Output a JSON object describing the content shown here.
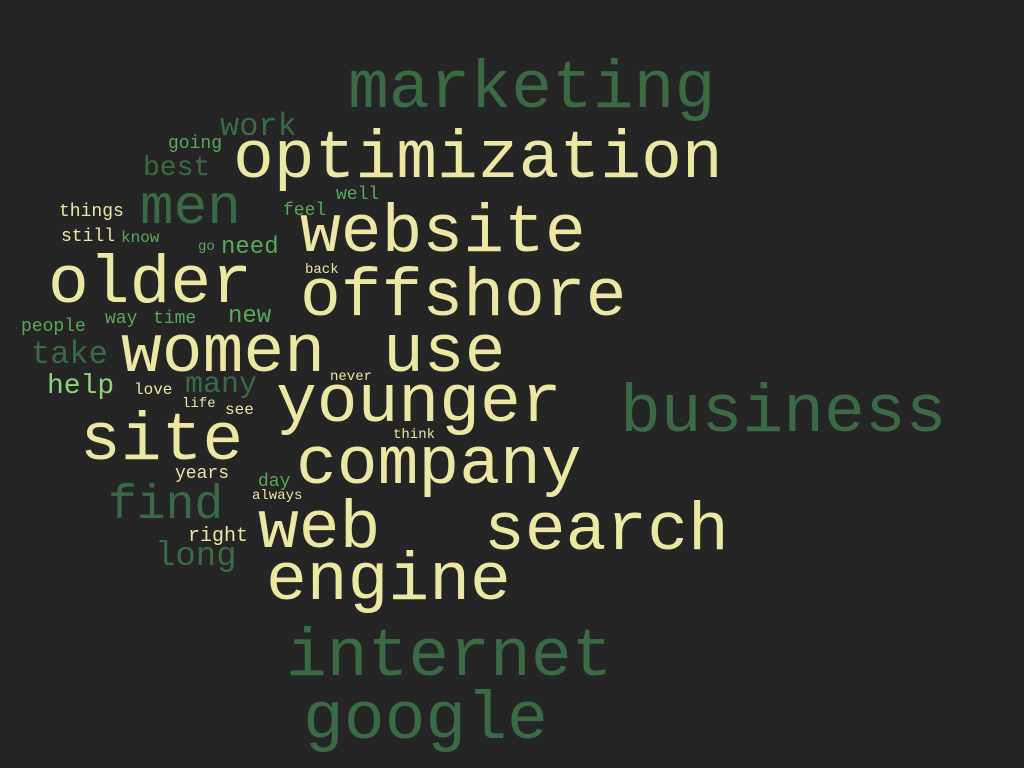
{
  "words": {
    "marketing": "marketing",
    "optimization": "optimization",
    "work": "work",
    "going": "going",
    "best": "best",
    "men": "men",
    "well": "well",
    "feel": "feel",
    "things": "things",
    "website": "website",
    "still": "still",
    "know": "know",
    "go": "go",
    "need": "need",
    "older": "older",
    "back": "back",
    "offshore": "offshore",
    "people": "people",
    "way": "way",
    "time": "time",
    "new": "new",
    "take": "take",
    "women": "women",
    "use": "use",
    "never": "never",
    "help": "help",
    "love": "love",
    "many": "many",
    "younger": "younger",
    "business": "business",
    "life": "life",
    "see": "see",
    "site": "site",
    "think": "think",
    "company": "company",
    "years": "years",
    "day": "day",
    "always": "always",
    "find": "find",
    "web": "web",
    "search": "search",
    "right": "right",
    "long": "long",
    "engine": "engine",
    "internet": "internet",
    "google": "google"
  },
  "colors": {
    "background": "#252525",
    "cream": "#ece7a2",
    "dark_green": "#3a6b45",
    "green": "#5aa95a",
    "lime": "#8ed37a"
  }
}
